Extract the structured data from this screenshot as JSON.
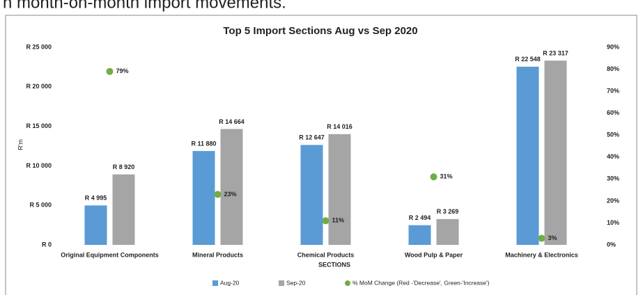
{
  "text_above": "n month-on-month import movements.",
  "chart_data": {
    "type": "bar",
    "title": "Top 5 Import Sections Aug vs Sep 2020",
    "y_label": "R'm",
    "x_label": "SECTIONS",
    "categories": [
      "Original Equipment Components",
      "Mineral Products",
      "Chemical Products",
      "Wood Pulp & Paper",
      "Machinery & Electronics"
    ],
    "series": [
      {
        "name": "Aug-20",
        "color": "#5b9bd5",
        "values": [
          4995,
          11880,
          12647,
          2494,
          22548
        ],
        "value_labels": [
          "R 4 995",
          "R 11 880",
          "R 12 647",
          "R 2 494",
          "R 22 548"
        ]
      },
      {
        "name": "Sep-20",
        "color": "#a5a5a5",
        "values": [
          8920,
          14664,
          14016,
          3269,
          23317
        ],
        "value_labels": [
          "R 8 920",
          "R 14 664",
          "R 14 016",
          "R 3 269",
          "R 23 317"
        ]
      },
      {
        "name": "% MoM Change (Red -'Decrease', Green-'Increase')",
        "color": "#70ad47",
        "axis": "y2",
        "values": [
          79,
          23,
          11,
          31,
          3
        ],
        "value_labels": [
          "79%",
          "23%",
          "11%",
          "31%",
          "3%"
        ]
      }
    ],
    "ylim": [
      0,
      25000
    ],
    "yticks": [
      {
        "value": 0,
        "label": "R 0"
      },
      {
        "value": 5000,
        "label": "R 5 000"
      },
      {
        "value": 10000,
        "label": "R 10 000"
      },
      {
        "value": 15000,
        "label": "R 15 000"
      },
      {
        "value": 20000,
        "label": "R 20 000"
      },
      {
        "value": 25000,
        "label": "R 25 000"
      }
    ],
    "y2lim": [
      0,
      90
    ],
    "y2ticks": [
      {
        "value": 0,
        "label": "0%"
      },
      {
        "value": 10,
        "label": "10%"
      },
      {
        "value": 20,
        "label": "20%"
      },
      {
        "value": 30,
        "label": "30%"
      },
      {
        "value": 40,
        "label": "40%"
      },
      {
        "value": 50,
        "label": "50%"
      },
      {
        "value": 60,
        "label": "60%"
      },
      {
        "value": 70,
        "label": "70%"
      },
      {
        "value": 80,
        "label": "80%"
      },
      {
        "value": 90,
        "label": "90%"
      }
    ],
    "grid": false,
    "legend": "bottom"
  }
}
